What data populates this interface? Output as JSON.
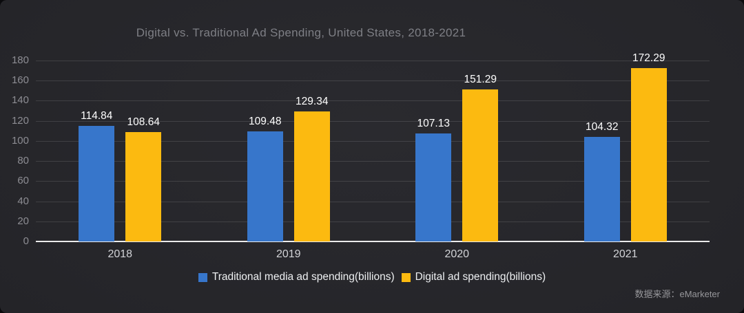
{
  "chart_data": {
    "type": "bar",
    "title": "Digital vs. Traditional Ad Spending, United States, 2018-2021",
    "categories": [
      "2018",
      "2019",
      "2020",
      "2021"
    ],
    "series": [
      {
        "name": "Traditional media ad spending(billions)",
        "color": "#3776cb",
        "values": [
          114.84,
          109.48,
          107.13,
          104.32
        ]
      },
      {
        "name": "Digital ad spending(billions)",
        "color": "#fcba10",
        "values": [
          108.64,
          129.34,
          151.29,
          172.29
        ]
      }
    ],
    "xlabel": "",
    "ylabel": "",
    "ylim": [
      0,
      180
    ],
    "yticks": [
      0,
      20,
      40,
      60,
      80,
      100,
      120,
      140,
      160,
      180
    ],
    "grid": true,
    "legend_position": "bottom-center",
    "value_labels": true
  },
  "source_note": "数据来源：eMarketer",
  "colors": {
    "background": "#242428",
    "grid": "rgba(255,255,255,0.12)",
    "axis_line": "#ececec",
    "title_text": "#7e7f85",
    "ytick_text": "#8d8d93",
    "xtick_text": "#d2d3d7",
    "value_label_text": "#ffffff",
    "legend_text": "#eef0f2",
    "source_text": "#97979b",
    "traditional_series": "#3776cb",
    "digital_series": "#fcba10"
  }
}
